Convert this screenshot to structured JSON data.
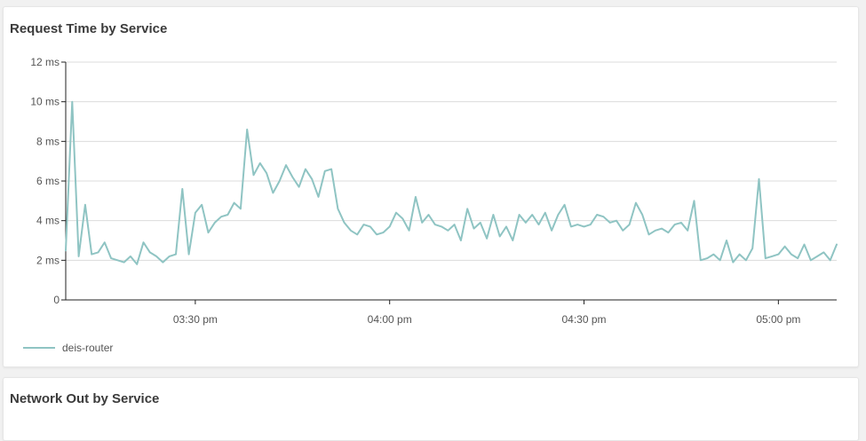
{
  "cards": [
    {
      "title": "Request Time by Service"
    },
    {
      "title": "Network Out by Service"
    }
  ],
  "colors": {
    "series": "#8fc4c3",
    "grid": "#dcdcdc",
    "axis": "#222222",
    "card_bg": "#ffffff",
    "page_bg": "#f1f1f1"
  },
  "chart_data": {
    "type": "line",
    "title": "Request Time by Service",
    "xlabel": "",
    "ylabel": "",
    "y_ticks": [
      {
        "value": 0,
        "label": "0"
      },
      {
        "value": 2,
        "label": "2 ms"
      },
      {
        "value": 4,
        "label": "4 ms"
      },
      {
        "value": 6,
        "label": "6 ms"
      },
      {
        "value": 8,
        "label": "8 ms"
      },
      {
        "value": 10,
        "label": "10 ms"
      },
      {
        "value": 12,
        "label": "12 ms"
      }
    ],
    "x_ticks": [
      {
        "value": "15:30",
        "label": "03:30 pm"
      },
      {
        "value": "16:00",
        "label": "04:00 pm"
      },
      {
        "value": "16:30",
        "label": "04:30 pm"
      },
      {
        "value": "17:00",
        "label": "05:00 pm"
      }
    ],
    "xlim": [
      "15:10",
      "17:09"
    ],
    "ylim": [
      0,
      12
    ],
    "grid": true,
    "legend_position": "bottom-left",
    "series": [
      {
        "name": "deis-router",
        "x": [
          "15:10",
          "15:11",
          "15:12",
          "15:13",
          "15:14",
          "15:15",
          "15:16",
          "15:17",
          "15:18",
          "15:19",
          "15:20",
          "15:21",
          "15:22",
          "15:23",
          "15:24",
          "15:25",
          "15:26",
          "15:27",
          "15:28",
          "15:29",
          "15:30",
          "15:31",
          "15:32",
          "15:33",
          "15:34",
          "15:35",
          "15:36",
          "15:37",
          "15:38",
          "15:39",
          "15:40",
          "15:41",
          "15:42",
          "15:43",
          "15:44",
          "15:45",
          "15:46",
          "15:47",
          "15:48",
          "15:49",
          "15:50",
          "15:51",
          "15:52",
          "15:53",
          "15:54",
          "15:55",
          "15:56",
          "15:57",
          "15:58",
          "15:59",
          "16:00",
          "16:01",
          "16:02",
          "16:03",
          "16:04",
          "16:05",
          "16:06",
          "16:07",
          "16:08",
          "16:09",
          "16:10",
          "16:11",
          "16:12",
          "16:13",
          "16:14",
          "16:15",
          "16:16",
          "16:17",
          "16:18",
          "16:19",
          "16:20",
          "16:21",
          "16:22",
          "16:23",
          "16:24",
          "16:25",
          "16:26",
          "16:27",
          "16:28",
          "16:29",
          "16:30",
          "16:31",
          "16:32",
          "16:33",
          "16:34",
          "16:35",
          "16:36",
          "16:37",
          "16:38",
          "16:39",
          "16:40",
          "16:41",
          "16:42",
          "16:43",
          "16:44",
          "16:45",
          "16:46",
          "16:47",
          "16:48",
          "16:49",
          "16:50",
          "16:51",
          "16:52",
          "16:53",
          "16:54",
          "16:55",
          "16:56",
          "16:57",
          "16:58",
          "16:59",
          "17:00",
          "17:01",
          "17:02",
          "17:03",
          "17:04",
          "17:05",
          "17:06",
          "17:07",
          "17:08",
          "17:09"
        ],
        "values": [
          2.5,
          10.0,
          2.2,
          4.8,
          2.3,
          2.4,
          2.9,
          2.1,
          2.0,
          1.9,
          2.2,
          1.8,
          2.9,
          2.4,
          2.2,
          1.9,
          2.2,
          2.3,
          5.6,
          2.3,
          4.4,
          4.8,
          3.4,
          3.9,
          4.2,
          4.3,
          4.9,
          4.6,
          8.6,
          6.3,
          6.9,
          6.4,
          5.4,
          6.0,
          6.8,
          6.2,
          5.7,
          6.6,
          6.1,
          5.2,
          6.5,
          6.6,
          4.6,
          3.9,
          3.5,
          3.3,
          3.8,
          3.7,
          3.3,
          3.4,
          3.7,
          4.4,
          4.1,
          3.5,
          5.2,
          3.9,
          4.3,
          3.8,
          3.7,
          3.5,
          3.8,
          3.0,
          4.6,
          3.6,
          3.9,
          3.1,
          4.3,
          3.2,
          3.7,
          3.0,
          4.3,
          3.9,
          4.3,
          3.8,
          4.4,
          3.5,
          4.3,
          4.8,
          3.7,
          3.8,
          3.7,
          3.8,
          4.3,
          4.2,
          3.9,
          4.0,
          3.5,
          3.8,
          4.9,
          4.3,
          3.3,
          3.5,
          3.6,
          3.4,
          3.8,
          3.9,
          3.5,
          5.0,
          2.0,
          2.1,
          2.3,
          2.0,
          3.0,
          1.9,
          2.3,
          2.0,
          2.6,
          6.1,
          2.1,
          2.2,
          2.3,
          2.7,
          2.3,
          2.1,
          2.8,
          2.0,
          2.2,
          2.4,
          2.0,
          2.8
        ]
      }
    ]
  }
}
